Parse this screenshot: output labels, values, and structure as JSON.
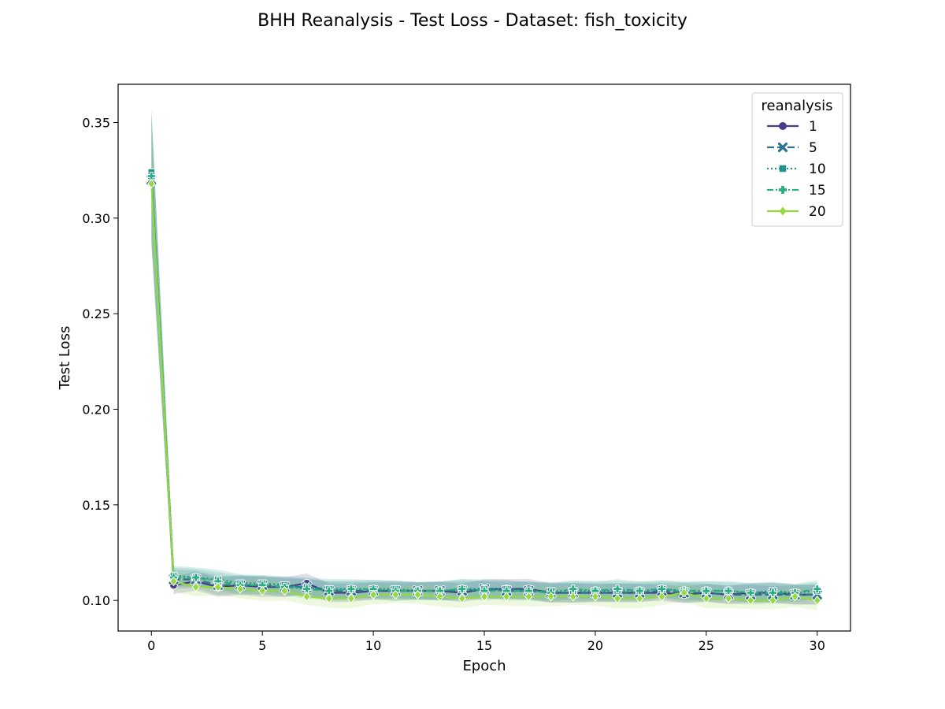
{
  "chart_data": {
    "type": "line",
    "title": "BHH Reanalysis - Test Loss - Dataset: fish_toxicity",
    "xlabel": "Epoch",
    "ylabel": "Test Loss",
    "xlim": [
      -1.5,
      31.5
    ],
    "ylim": [
      0.084,
      0.37
    ],
    "xticks": [
      0,
      5,
      10,
      15,
      20,
      25,
      30
    ],
    "yticks": [
      0.1,
      0.15,
      0.2,
      0.25,
      0.3,
      0.35
    ],
    "ytick_labels": [
      "0.10",
      "0.15",
      "0.20",
      "0.25",
      "0.30",
      "0.35"
    ],
    "grid": false,
    "legend": {
      "title": "reanalysis",
      "position": "top-right"
    },
    "x": [
      0,
      1,
      2,
      3,
      4,
      5,
      6,
      7,
      8,
      9,
      10,
      11,
      12,
      13,
      14,
      15,
      16,
      17,
      18,
      19,
      20,
      21,
      22,
      23,
      24,
      25,
      26,
      27,
      28,
      29,
      30
    ],
    "series": [
      {
        "name": "1",
        "color": "#433e85",
        "marker": "circle",
        "dash": "solid",
        "values": [
          0.322,
          0.108,
          0.11,
          0.107,
          0.108,
          0.107,
          0.107,
          0.109,
          0.104,
          0.104,
          0.105,
          0.105,
          0.105,
          0.105,
          0.104,
          0.106,
          0.106,
          0.106,
          0.104,
          0.104,
          0.104,
          0.104,
          0.104,
          0.104,
          0.103,
          0.104,
          0.103,
          0.104,
          0.104,
          0.103,
          0.103
        ]
      },
      {
        "name": "5",
        "color": "#2c728e",
        "marker": "x",
        "dash": "dashed",
        "values": [
          0.32,
          0.111,
          0.111,
          0.108,
          0.108,
          0.108,
          0.107,
          0.107,
          0.105,
          0.105,
          0.105,
          0.105,
          0.105,
          0.105,
          0.105,
          0.106,
          0.105,
          0.105,
          0.104,
          0.104,
          0.104,
          0.104,
          0.104,
          0.105,
          0.104,
          0.104,
          0.103,
          0.103,
          0.103,
          0.103,
          0.103
        ]
      },
      {
        "name": "10",
        "color": "#21918c",
        "marker": "square",
        "dash": "dotted",
        "values": [
          0.324,
          0.113,
          0.112,
          0.111,
          0.109,
          0.109,
          0.108,
          0.107,
          0.106,
          0.106,
          0.106,
          0.106,
          0.105,
          0.105,
          0.106,
          0.106,
          0.106,
          0.105,
          0.105,
          0.105,
          0.105,
          0.105,
          0.105,
          0.106,
          0.105,
          0.105,
          0.105,
          0.104,
          0.105,
          0.104,
          0.105
        ]
      },
      {
        "name": "15",
        "color": "#28ae80",
        "marker": "plus",
        "dash": "dashdot",
        "values": [
          0.322,
          0.112,
          0.112,
          0.11,
          0.108,
          0.108,
          0.107,
          0.106,
          0.105,
          0.106,
          0.106,
          0.105,
          0.105,
          0.105,
          0.106,
          0.105,
          0.105,
          0.105,
          0.104,
          0.106,
          0.105,
          0.106,
          0.105,
          0.106,
          0.105,
          0.105,
          0.105,
          0.104,
          0.104,
          0.104,
          0.106
        ]
      },
      {
        "name": "20",
        "color": "#95d840",
        "marker": "diamond",
        "dash": "solid",
        "values": [
          0.318,
          0.11,
          0.107,
          0.107,
          0.106,
          0.105,
          0.105,
          0.102,
          0.101,
          0.101,
          0.103,
          0.103,
          0.103,
          0.102,
          0.101,
          0.102,
          0.102,
          0.102,
          0.102,
          0.102,
          0.102,
          0.101,
          0.101,
          0.102,
          0.104,
          0.101,
          0.101,
          0.1,
          0.1,
          0.102,
          0.1
        ]
      }
    ]
  }
}
